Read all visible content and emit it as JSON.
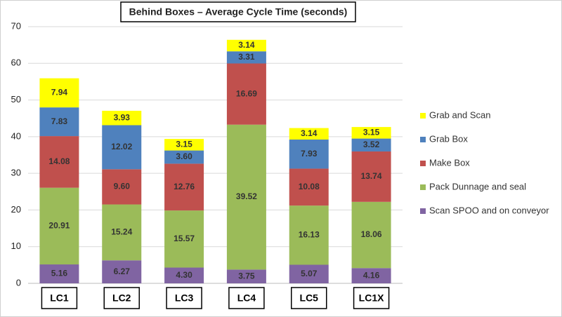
{
  "chart_data": {
    "type": "stacked_bar",
    "title": "Behind Boxes – Average Cycle Time (seconds)",
    "categories": [
      "LC1",
      "LC2",
      "LC3",
      "LC4",
      "LC5",
      "LC1X"
    ],
    "series": [
      {
        "name": "Scan SPOO and on conveyor",
        "color": "#8064a2",
        "values": [
          5.16,
          6.27,
          4.3,
          3.75,
          5.07,
          4.16
        ],
        "value_labels": [
          "5.16",
          "6.27",
          "4.30",
          "3.75",
          "5.07",
          "4.16"
        ]
      },
      {
        "name": "Pack Dunnage and seal",
        "color": "#9bbb59",
        "values": [
          20.91,
          15.24,
          15.57,
          39.52,
          16.13,
          18.06
        ],
        "value_labels": [
          "20.91",
          "15.24",
          "15.57",
          "39.52",
          "16.13",
          "18.06"
        ]
      },
      {
        "name": "Make Box",
        "color": "#c0504d",
        "values": [
          14.08,
          9.6,
          12.76,
          16.69,
          10.08,
          13.74
        ],
        "value_labels": [
          "14.08",
          "9.60",
          "12.76",
          "16.69",
          "10.08",
          "13.74"
        ]
      },
      {
        "name": "Grab Box",
        "color": "#4f81bd",
        "values": [
          7.83,
          12.02,
          3.6,
          3.31,
          7.93,
          3.52
        ],
        "value_labels": [
          "7.83",
          "12.02",
          "3.60",
          "3.31",
          "7.93",
          "3.52"
        ]
      },
      {
        "name": "Grab and Scan",
        "color": "#ffff00",
        "values": [
          7.94,
          3.93,
          3.15,
          3.14,
          3.14,
          3.15
        ],
        "value_labels": [
          "7.94",
          "3.93",
          "3.15",
          "3.14",
          "3.14",
          "3.15"
        ]
      }
    ],
    "ylim": [
      0,
      70
    ],
    "yticks": [
      0,
      10,
      20,
      30,
      40,
      50,
      60,
      70
    ],
    "grid": true,
    "legend": "right"
  }
}
